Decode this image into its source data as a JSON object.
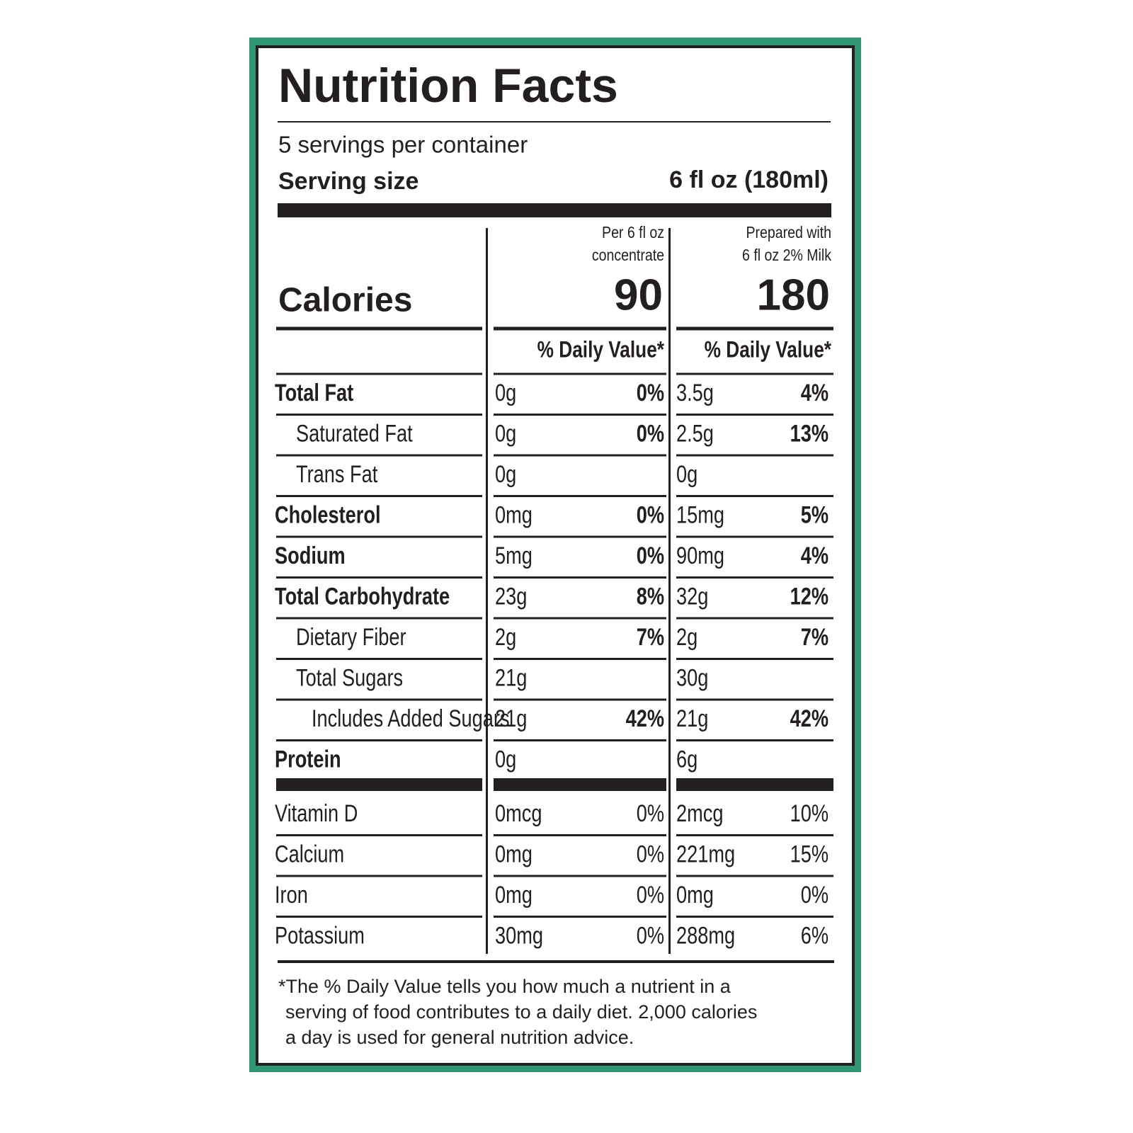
{
  "title": "Nutrition Facts",
  "servings": "5 servings per container",
  "serving_size": {
    "label": "Serving size",
    "value": "6 fl oz (180ml)"
  },
  "calories_label": "Calories",
  "columns": [
    {
      "header": [
        "Per 6 fl oz",
        "concentrate"
      ],
      "calories": 90,
      "dv_header": "% Daily Value*"
    },
    {
      "header": [
        "Prepared with",
        "6 fl oz 2% Milk"
      ],
      "calories": 180,
      "dv_header": "% Daily Value*"
    }
  ],
  "rows": [
    {
      "name": "Total Fat",
      "bold": true,
      "level": 0,
      "cells": [
        "0g",
        "0%",
        "3.5g",
        "4%"
      ]
    },
    {
      "name": "Saturated Fat",
      "bold": false,
      "level": 1,
      "cells": [
        "0g",
        "0%",
        "2.5g",
        "13%"
      ]
    },
    {
      "name": "Trans Fat",
      "bold": false,
      "level": 1,
      "cells": [
        "0g",
        null,
        "0g",
        null
      ]
    },
    {
      "name": "Cholesterol",
      "bold": true,
      "level": 0,
      "cells": [
        "0mg",
        "0%",
        "15mg",
        "5%"
      ]
    },
    {
      "name": "Sodium",
      "bold": true,
      "level": 0,
      "cells": [
        "5mg",
        "0%",
        "90mg",
        "4%"
      ]
    },
    {
      "name": "Total Carbohydrate",
      "bold": true,
      "level": 0,
      "cells": [
        "23g",
        "8%",
        "32g",
        "12%"
      ]
    },
    {
      "name": "Dietary Fiber",
      "bold": false,
      "level": 1,
      "cells": [
        "2g",
        "7%",
        "2g",
        "7%"
      ]
    },
    {
      "name": "Total Sugars",
      "bold": false,
      "level": 1,
      "cells": [
        "21g",
        null,
        "30g",
        null
      ]
    },
    {
      "name": "Includes Added Sugars",
      "bold": false,
      "level": 2,
      "cells": [
        "21g",
        "42%",
        "21g",
        "42%"
      ]
    },
    {
      "name": "Protein",
      "bold": true,
      "level": 0,
      "cells": [
        "0g",
        null,
        "6g",
        null
      ]
    }
  ],
  "vitamins": [
    {
      "name": "Vitamin D",
      "cells": [
        "0mcg",
        "0%",
        "2mcg",
        "10%"
      ]
    },
    {
      "name": "Calcium",
      "cells": [
        "0mg",
        "0%",
        "221mg",
        "15%"
      ]
    },
    {
      "name": "Iron",
      "cells": [
        "0mg",
        "0%",
        "0mg",
        "0%"
      ]
    },
    {
      "name": "Potassium",
      "cells": [
        "30mg",
        "0%",
        "288mg",
        "6%"
      ]
    }
  ],
  "footnote": [
    "*The % Daily Value tells you how much a nutrient in a",
    "serving of food contributes to a daily diet. 2,000 calories",
    "a day is used for general nutrition advice."
  ]
}
